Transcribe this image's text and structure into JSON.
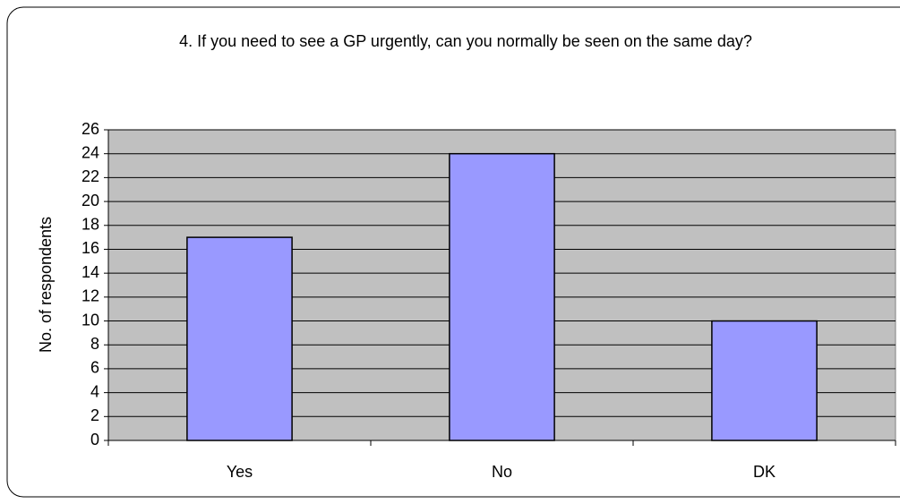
{
  "chart_data": {
    "type": "bar",
    "title": "4. If you need to see a GP urgently, can you normally be seen on the same day?",
    "y_label": "No. of respondents",
    "categories": [
      "Yes",
      "No",
      "DK"
    ],
    "values": [
      17,
      24,
      10
    ],
    "color": "#9999ff",
    "ylim": [
      0,
      26
    ],
    "yticks": [
      0,
      2,
      4,
      6,
      8,
      10,
      12,
      14,
      16,
      18,
      20,
      22,
      24,
      26
    ],
    "grid": true
  }
}
